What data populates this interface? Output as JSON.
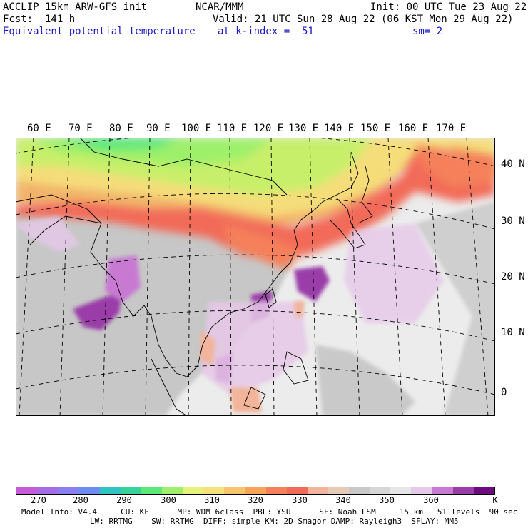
{
  "header": {
    "line1_left": "ACCLIP 15km ARW-GFS init",
    "line1_center": "NCAR/MMM",
    "line1_right": "Init: 00 UTC Tue 23 Aug 22",
    "line2_left": "Fcst:  141 h",
    "line2_right": "Valid: 21 UTC Sun 28 Aug 22 (06 KST Mon 29 Aug 22)",
    "line3_left": "Equivalent potential temperature",
    "line3_center": "at k-index =  51",
    "line3_right": "sm= 2"
  },
  "map": {
    "longitude_labels": [
      "60 E",
      "70 E",
      "80 E",
      "90 E",
      "100 E",
      "110 E",
      "120 E",
      "130 E",
      "140 E",
      "150 E",
      "160 E",
      "170 E"
    ],
    "latitude_labels": [
      "40 N",
      "30 N",
      "20 N",
      "10 N",
      "0"
    ]
  },
  "colorbar": {
    "colors": [
      "#c75ad6",
      "#a86be6",
      "#8a7ef0",
      "#6b8cf2",
      "#2ec4c4",
      "#35d39a",
      "#5be87a",
      "#9ef06a",
      "#e6f27a",
      "#f5e07a",
      "#f7c66a",
      "#f7a35a",
      "#f5805a",
      "#f26a58",
      "#f2b49a",
      "#e6cbb6",
      "#c8c8c8",
      "#d6d6d6",
      "#e6e6e6",
      "#e6c8e8",
      "#c87ad2",
      "#9a3ca8",
      "#6e0a80"
    ],
    "labels": [
      "270",
      "280",
      "290",
      "300",
      "310",
      "320",
      "330",
      "340",
      "350",
      "360",
      "K"
    ]
  },
  "model_info": {
    "line1": "Model Info: V4.4     CU: KF      MP: WDM 6class  PBL: YSU      SF: Noah LSM     15 km   51 levels  90 sec",
    "line2": "LW: RRTMG    SW: RRTMG  DIFF: simple KM: 2D Smagor DAMP: Rayleigh3  SFLAY: MM5"
  }
}
